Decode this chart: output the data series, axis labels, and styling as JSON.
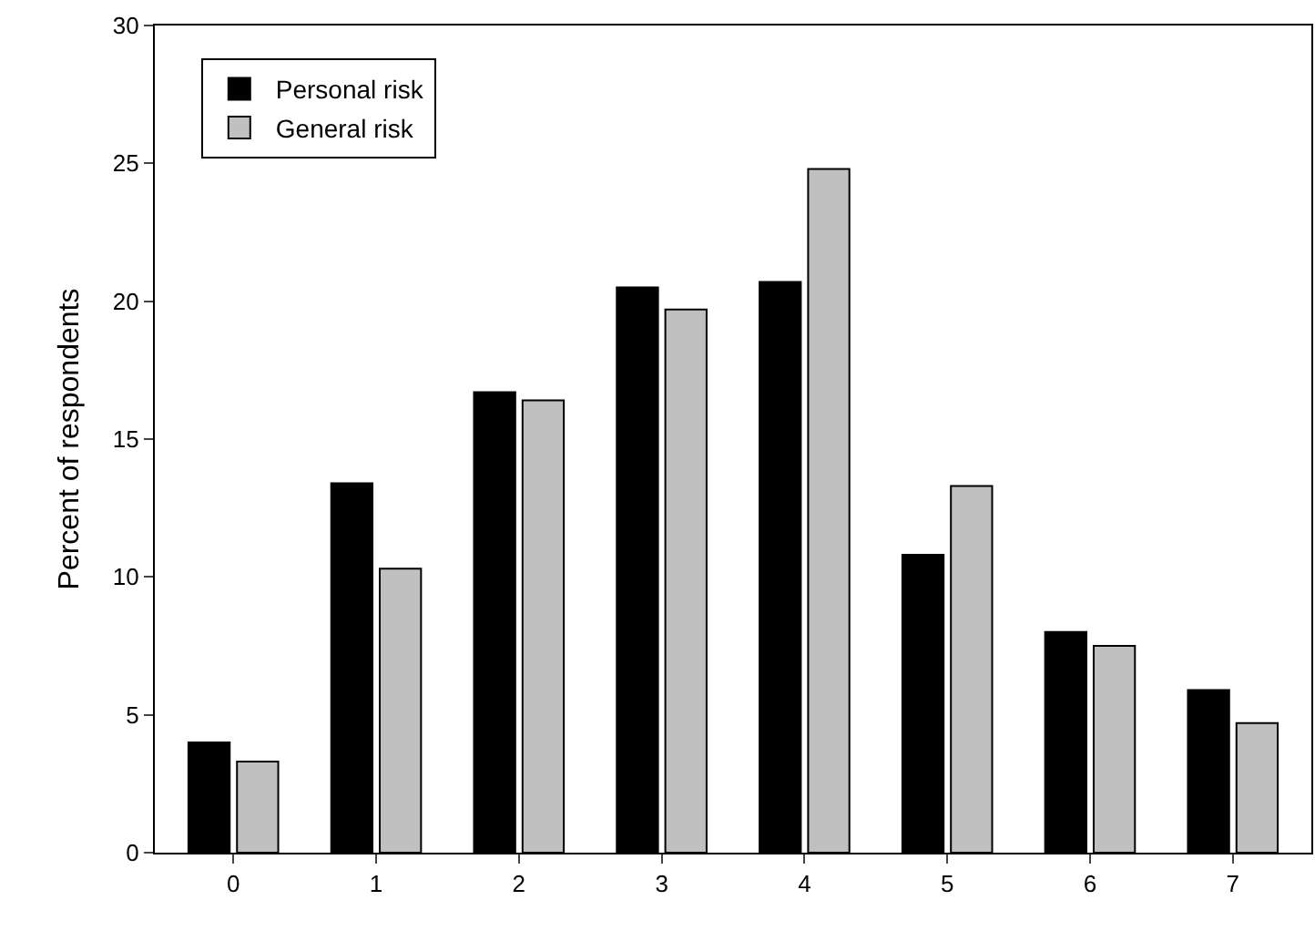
{
  "chart_data": {
    "type": "bar",
    "ylabel": "Percent of respondents",
    "categories": [
      "0",
      "1",
      "2",
      "3",
      "4",
      "5",
      "6",
      "7"
    ],
    "series": [
      {
        "name": "Personal risk",
        "color": "#000000",
        "values": [
          4.0,
          13.4,
          16.7,
          20.5,
          20.7,
          10.8,
          8.0,
          5.9
        ]
      },
      {
        "name": "General risk",
        "color": "#c0c0c0",
        "values": [
          3.3,
          10.3,
          16.4,
          19.7,
          24.8,
          13.3,
          7.5,
          4.7
        ]
      }
    ],
    "ylim": [
      0,
      30
    ],
    "yticks": [
      0,
      5,
      10,
      15,
      20,
      25,
      30
    ],
    "grid": false,
    "legend": "top left"
  }
}
